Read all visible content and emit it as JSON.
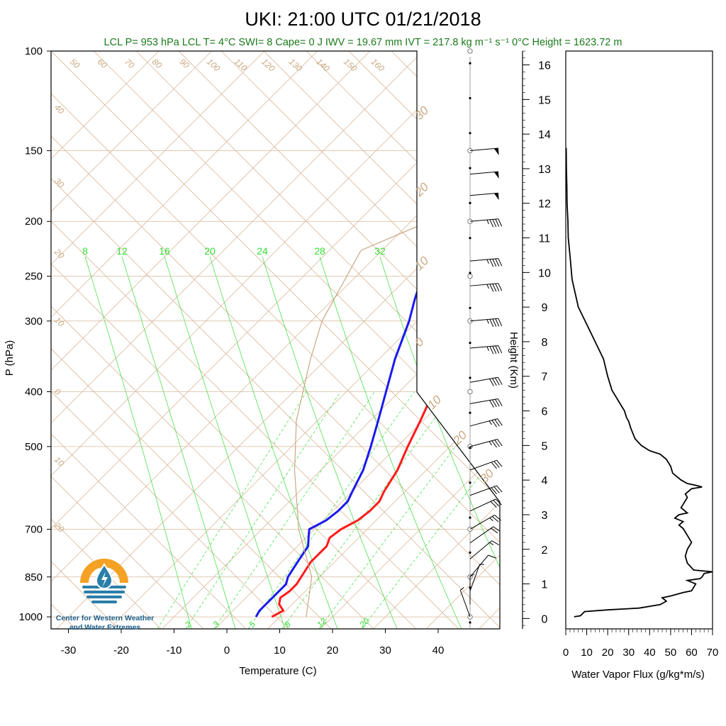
{
  "header": {
    "title": "UKI: 21:00 UTC 01/21/2018",
    "subtitle": "LCL P= 953 hPa  LCL T= 4°C  SWI= 8  Cape= 0 J  IWV = 19.67 mm  IVT = 217.8 kg m⁻¹ s⁻¹  0°C Height = 1623.72 m"
  },
  "logo": {
    "line1": "Center for Western Weather",
    "line2": "and Water Extremes",
    "colors": {
      "sun": "#f4a124",
      "water": "#2a7fa8",
      "drop": "#2a7fa8"
    }
  },
  "colors": {
    "temperature": "#ff1a1a",
    "dewpoint": "#1a1aee",
    "dry_adiabat": "#d8b89a",
    "mixing_ratio": "#33dd33",
    "parcel": "#c8a07a",
    "flux": "#000000"
  },
  "chart_data": [
    {
      "type": "line",
      "name": "skew-t",
      "xlabel": "Temperature (C)",
      "ylabel": "P (hPa)",
      "xlim": [
        -34,
        50
      ],
      "ylim": [
        1050,
        100
      ],
      "y_scale": "log",
      "x_ticks": [
        "-30",
        "-20",
        "-10",
        "0",
        "10",
        "20",
        "30",
        "40"
      ],
      "y_ticks": [
        "100",
        "150",
        "200",
        "250",
        "300",
        "400",
        "500",
        "700",
        "850",
        "1000"
      ],
      "theta_labels": [
        "50",
        "60",
        "70",
        "80",
        "90",
        "100",
        "110",
        "120",
        "130",
        "140",
        "150",
        "160"
      ],
      "wet_bulb_left_labels": [
        "40",
        "30",
        "20",
        "10",
        "0",
        "10",
        "20"
      ],
      "wet_bulb_right_labels": [
        "30",
        "20",
        "10",
        "0",
        "10",
        "20",
        "30"
      ],
      "mixing_top_labels": [
        "8",
        "12",
        "16",
        "20",
        "24",
        "28",
        "32"
      ],
      "mixing_bottom_labels": [
        "2",
        "3",
        "5",
        "8",
        "12",
        "20"
      ],
      "series": [
        {
          "name": "Temperature",
          "points": [
            [
              8.5,
              1000
            ],
            [
              9.5,
              975
            ],
            [
              7.5,
              950
            ],
            [
              6.5,
              925
            ],
            [
              7.0,
              900
            ],
            [
              7.0,
              875
            ],
            [
              6.5,
              850
            ],
            [
              5.5,
              800
            ],
            [
              5.5,
              750
            ],
            [
              4.5,
              725
            ],
            [
              5.0,
              700
            ],
            [
              6.5,
              675
            ],
            [
              7.0,
              650
            ],
            [
              7.0,
              625
            ],
            [
              6.0,
              600
            ],
            [
              4.5,
              550
            ],
            [
              2.0,
              500
            ],
            [
              -0.5,
              450
            ],
            [
              -3.5,
              400
            ],
            [
              -7.5,
              350
            ],
            [
              -12.0,
              300
            ],
            [
              -15.5,
              275
            ],
            [
              -18.5,
              250
            ],
            [
              -19.5,
              235
            ],
            [
              -19.0,
              225
            ],
            [
              -14.0,
              220
            ],
            [
              -9.0,
              210
            ],
            [
              -5.0,
              200
            ],
            [
              -3.0,
              190
            ],
            [
              -0.5,
              180
            ],
            [
              1.0,
              170
            ],
            [
              3.5,
              160
            ],
            [
              6.0,
              155
            ],
            [
              6.5,
              150
            ]
          ]
        },
        {
          "name": "Dewpoint",
          "points": [
            [
              5.5,
              1000
            ],
            [
              5.0,
              975
            ],
            [
              5.0,
              950
            ],
            [
              5.0,
              900
            ],
            [
              5.0,
              875
            ],
            [
              4.0,
              850
            ],
            [
              3.0,
              800
            ],
            [
              2.0,
              750
            ],
            [
              0.5,
              725
            ],
            [
              -1.0,
              700
            ],
            [
              0.5,
              675
            ],
            [
              1.0,
              650
            ],
            [
              1.0,
              625
            ],
            [
              0.0,
              600
            ],
            [
              -2.0,
              550
            ],
            [
              -5.0,
              500
            ],
            [
              -8.5,
              450
            ],
            [
              -12.5,
              400
            ],
            [
              -17.0,
              350
            ],
            [
              -21.5,
              300
            ],
            [
              -24.5,
              275
            ],
            [
              -27.5,
              250
            ],
            [
              -28.5,
              235
            ],
            [
              -26.5,
              225
            ],
            [
              -26.0,
              220
            ],
            [
              -29.0,
              215
            ],
            [
              -31.0,
              210
            ],
            [
              -31.5,
              200
            ],
            [
              -32.5,
              185
            ],
            [
              -33.5,
              175
            ],
            [
              -33.0,
              165
            ],
            [
              -31.5,
              160
            ],
            [
              -29.0,
              155
            ],
            [
              -28.0,
              150
            ]
          ]
        },
        {
          "name": "Parcel",
          "points": [
            [
              15.0,
              1000
            ],
            [
              8.5,
              850
            ],
            [
              -3.0,
              700
            ],
            [
              -15.0,
              550
            ],
            [
              -24.0,
              450
            ],
            [
              -33.0,
              350
            ],
            [
              -38.0,
              300
            ],
            [
              -44.0,
              225
            ],
            [
              -30.0,
              180
            ],
            [
              -10.0,
              130
            ],
            [
              5.0,
              100
            ]
          ]
        }
      ]
    },
    {
      "type": "line",
      "name": "water-vapor-flux",
      "xlabel": "Water Vapor Flux (g/kg*m/s)",
      "ylabel": "Height (Km)",
      "xlim": [
        0,
        70
      ],
      "ylim": [
        -0.3,
        16.4
      ],
      "x_ticks": [
        "0",
        "10",
        "20",
        "30",
        "40",
        "50",
        "60",
        "70"
      ],
      "y_ticks": [
        "0",
        "1",
        "2",
        "3",
        "4",
        "5",
        "6",
        "7",
        "8",
        "9",
        "10",
        "11",
        "12",
        "13",
        "14",
        "15",
        "16"
      ],
      "x": [
        4,
        7,
        9,
        20,
        35,
        45,
        48,
        46,
        50,
        56,
        60,
        62,
        58,
        64,
        65,
        66,
        70,
        61,
        58,
        57,
        58,
        60,
        58,
        57,
        56,
        54,
        56,
        52,
        54,
        58,
        55,
        56,
        57,
        58,
        57,
        60,
        65,
        62,
        58,
        55,
        51,
        50,
        48,
        45,
        40,
        36,
        33,
        31,
        30,
        29,
        28,
        25,
        22,
        20,
        18,
        14,
        10,
        6,
        3,
        2,
        1.2,
        1,
        0.6,
        0.5,
        0.3,
        0.2
      ],
      "y": [
        0.05,
        0.08,
        0.2,
        0.25,
        0.3,
        0.4,
        0.5,
        0.6,
        0.65,
        0.75,
        0.8,
        1.0,
        1.1,
        1.15,
        1.2,
        1.3,
        1.35,
        1.4,
        1.6,
        1.8,
        2.0,
        2.2,
        2.4,
        2.5,
        2.6,
        2.7,
        2.8,
        2.9,
        3.0,
        3.05,
        3.2,
        3.3,
        3.4,
        3.5,
        3.6,
        3.75,
        3.8,
        3.85,
        3.9,
        4.0,
        4.2,
        4.4,
        4.6,
        4.75,
        4.85,
        5.0,
        5.2,
        5.5,
        5.7,
        5.8,
        6.0,
        6.3,
        6.6,
        7.0,
        7.5,
        8.0,
        8.5,
        9.0,
        9.8,
        10.5,
        11.0,
        11.5,
        12.0,
        12.5,
        13.0,
        13.6
      ]
    },
    {
      "type": "wind-barbs",
      "name": "wind-profile",
      "pressure_levels": [
        150,
        165,
        180,
        200,
        235,
        260,
        300,
        335,
        385,
        420,
        460,
        500,
        550,
        610,
        650,
        700,
        740,
        790,
        850,
        900,
        950,
        1000
      ],
      "speed_kt": [
        50,
        50,
        50,
        45,
        45,
        45,
        45,
        45,
        40,
        40,
        35,
        35,
        30,
        30,
        30,
        25,
        20,
        15,
        10,
        5,
        5,
        5
      ],
      "direction_deg": [
        265,
        265,
        265,
        265,
        265,
        265,
        265,
        265,
        260,
        260,
        255,
        255,
        250,
        250,
        245,
        240,
        235,
        230,
        220,
        200,
        180,
        160
      ],
      "height_markers_km": [
        16,
        15,
        14,
        13,
        12,
        11,
        10,
        9,
        8,
        7,
        6,
        5,
        4,
        3,
        2,
        1,
        0
      ],
      "open_circle_levels_hPa": [
        100,
        150,
        200,
        250,
        300,
        400,
        500,
        700,
        850,
        1000
      ]
    }
  ]
}
